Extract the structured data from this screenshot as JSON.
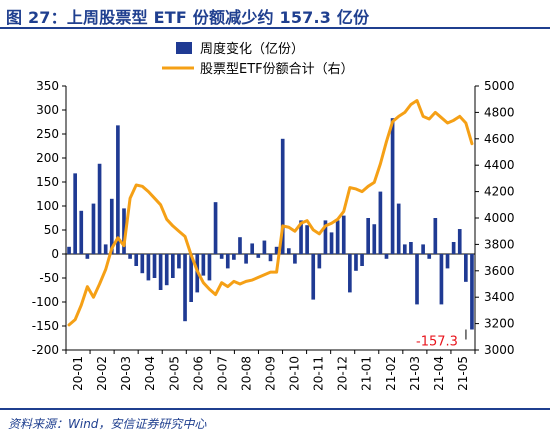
{
  "figure": {
    "title": "图 27：上周股票型 ETF 份额减少约 157.3 亿份",
    "source": "资料来源：Wind，安信证券研究中心"
  },
  "colors": {
    "bar": "#1f3a93",
    "line": "#f5a016",
    "accent": "#e8141c",
    "title": "#1f3f8f"
  },
  "chart_data": {
    "type": "bar",
    "title": "",
    "xlabel": "",
    "ylabel": "",
    "x_ticks": [
      "20-01",
      "20-02",
      "20-03",
      "20-04",
      "20-05",
      "20-06",
      "20-07",
      "20-08",
      "20-09",
      "20-10",
      "20-11",
      "20-12",
      "21-01",
      "21-02",
      "21-03",
      "21-04",
      "21-05"
    ],
    "ylim": [
      -200,
      350
    ],
    "y_ticks": [
      -200,
      -150,
      -100,
      -50,
      0,
      50,
      100,
      150,
      200,
      250,
      300,
      350
    ],
    "y2lim": [
      3000,
      5000
    ],
    "y2_ticks": [
      3000,
      3200,
      3400,
      3600,
      3800,
      4000,
      4200,
      4400,
      4600,
      4800,
      5000
    ],
    "grid": false,
    "legend_position": "top-center",
    "series": [
      {
        "name": "周度变化（亿份）",
        "type": "bar",
        "axis": "left",
        "values": [
          15,
          168,
          90,
          -10,
          105,
          188,
          20,
          115,
          268,
          95,
          -10,
          -25,
          -40,
          -55,
          -50,
          -75,
          -65,
          -50,
          -30,
          -140,
          -100,
          -80,
          -45,
          -55,
          108,
          -10,
          -30,
          -12,
          35,
          -20,
          22,
          -8,
          28,
          -15,
          15,
          240,
          12,
          -20,
          70,
          60,
          -95,
          -30,
          70,
          45,
          70,
          80,
          -80,
          -35,
          -25,
          75,
          62,
          130,
          -10,
          283,
          105,
          20,
          25,
          -105,
          20,
          -10,
          75,
          -105,
          -30,
          25,
          52,
          -58,
          -157.3
        ]
      },
      {
        "name": "股票型ETF份额合计（右）",
        "type": "line",
        "axis": "right",
        "values": [
          3190,
          3230,
          3340,
          3480,
          3400,
          3500,
          3610,
          3770,
          3850,
          3790,
          4150,
          4250,
          4240,
          4200,
          4150,
          4100,
          3990,
          3940,
          3900,
          3860,
          3720,
          3600,
          3510,
          3460,
          3420,
          3510,
          3480,
          3520,
          3500,
          3520,
          3530,
          3550,
          3570,
          3590,
          3590,
          3940,
          3930,
          3900,
          3960,
          3980,
          3910,
          3880,
          3940,
          3960,
          3990,
          4050,
          4230,
          4220,
          4200,
          4240,
          4270,
          4410,
          4580,
          4730,
          4770,
          4800,
          4860,
          4890,
          4770,
          4750,
          4800,
          4760,
          4720,
          4740,
          4770,
          4720,
          4563
        ]
      }
    ],
    "annotations": [
      {
        "text": "-157.3",
        "series": "周度变化（亿份）",
        "point": "last"
      }
    ]
  }
}
